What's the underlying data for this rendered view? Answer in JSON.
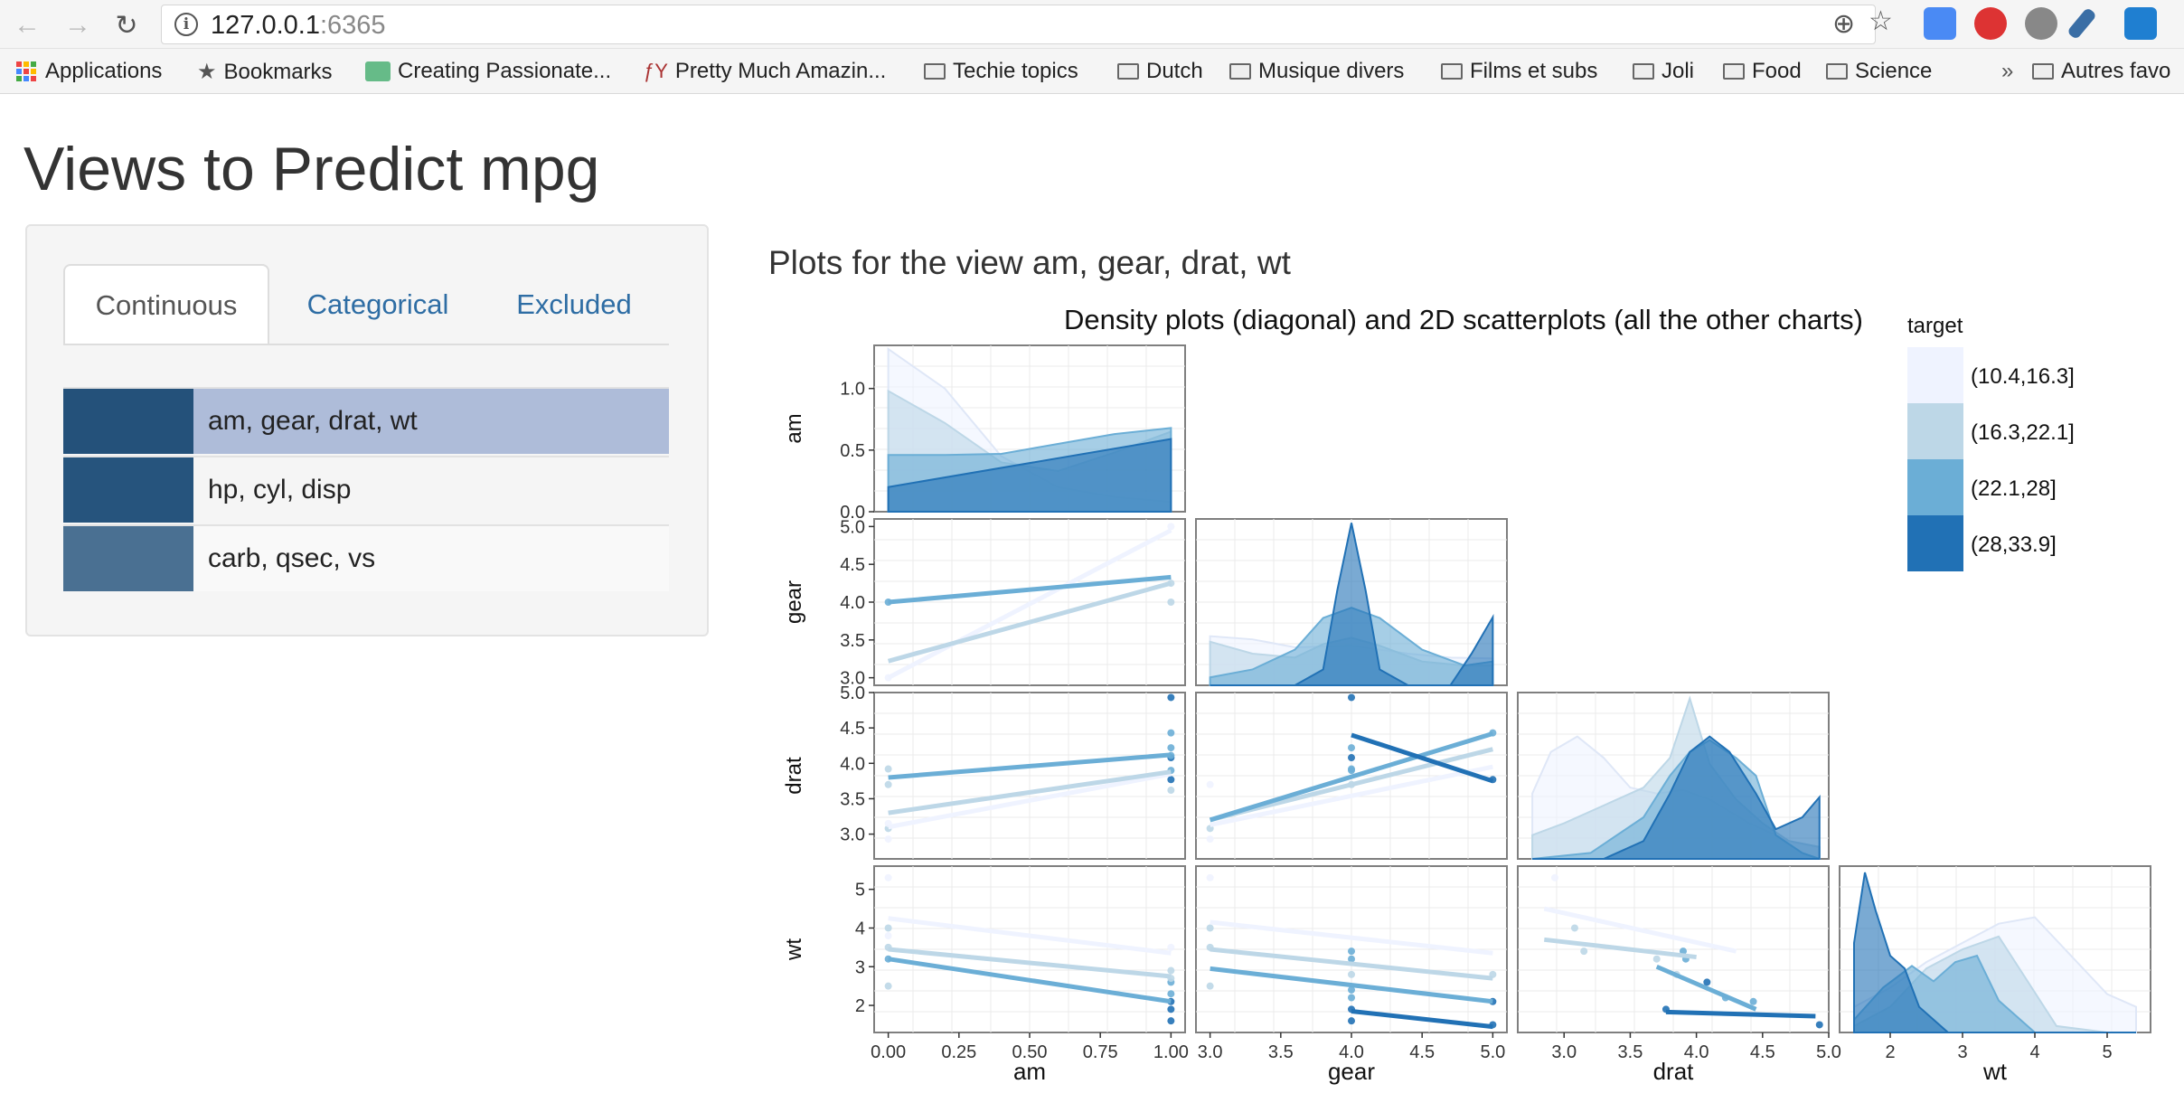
{
  "browser": {
    "url_host": "127.0.0.1",
    "url_port": ":6365",
    "bookmarks": [
      {
        "label": "Applications",
        "icon": "apps-icon"
      },
      {
        "label": "Bookmarks",
        "icon": "star-icon"
      },
      {
        "label": "Creating Passionate...",
        "icon": "site-icon"
      },
      {
        "label": "Pretty Much Amazin...",
        "icon": "site-icon"
      },
      {
        "label": "Techie topics",
        "icon": "folder-icon"
      },
      {
        "label": "Dutch",
        "icon": "folder-icon"
      },
      {
        "label": "Musique divers",
        "icon": "folder-icon"
      },
      {
        "label": "Films et subs",
        "icon": "folder-icon"
      },
      {
        "label": "Joli",
        "icon": "folder-icon"
      },
      {
        "label": "Food",
        "icon": "folder-icon"
      },
      {
        "label": "Science",
        "icon": "folder-icon"
      }
    ],
    "overflow_label": "»",
    "other_bookmarks": "Autres favo"
  },
  "page": {
    "title": "Views to Predict mpg",
    "tabs": [
      "Continuous",
      "Categorical",
      "Excluded"
    ],
    "views": [
      {
        "label": "am, gear, drat, wt",
        "swatch": "#24517a",
        "selected": true
      },
      {
        "label": "hp, cyl, disp",
        "swatch": "#26547d",
        "selected": false
      },
      {
        "label": "carb, qsec, vs",
        "swatch": "#4a7092",
        "selected": false
      }
    ],
    "selected_row_color": "#aebcd9",
    "plot_heading": "Plots for the view am, gear, drat, wt"
  },
  "chart_data": {
    "type": "scatter",
    "title": "Density plots (diagonal) and 2D scatterplots (all the other charts)",
    "variables": [
      "am",
      "gear",
      "drat",
      "wt"
    ],
    "legend": {
      "title": "target",
      "placement": "top-right",
      "entries": [
        "(10.4,16.3]",
        "(16.3,22.1]",
        "(22.1,28]",
        "(28,33.9]"
      ],
      "colors": [
        "#eff3ff",
        "#bdd7e7",
        "#6baed6",
        "#2171b5"
      ]
    },
    "axes": {
      "am": {
        "range": [
          -0.05,
          1.05
        ],
        "ticks": [
          "0.00",
          "0.25",
          "0.50",
          "0.75",
          "1.00"
        ]
      },
      "gear": {
        "range": [
          2.9,
          5.1
        ],
        "ticks": [
          "3.0",
          "3.5",
          "4.0",
          "4.5",
          "5.0"
        ]
      },
      "drat": {
        "range": [
          2.65,
          5.0
        ],
        "ticks": [
          "3.0",
          "3.5",
          "4.0",
          "4.5",
          "5.0"
        ]
      },
      "wt": {
        "range": [
          1.3,
          5.6
        ],
        "ticks": [
          "2",
          "3",
          "4",
          "5"
        ]
      }
    },
    "row_ticks": {
      "am": [
        "0.0",
        "0.5",
        "1.0"
      ],
      "gear": [
        "3.0",
        "3.5",
        "4.0",
        "4.5",
        "5.0"
      ],
      "drat": [
        "3.0",
        "3.5",
        "4.0",
        "4.5",
        "5.0"
      ],
      "wt": [
        "2",
        "3",
        "4",
        "5"
      ]
    },
    "density_ranges": {
      "am": [
        0,
        1.35
      ],
      "gear": [
        0,
        2.1
      ],
      "drat": [
        0,
        1.4
      ],
      "wt": [
        0,
        1.3
      ]
    },
    "densities": {
      "am": [
        {
          "x": [
            0,
            0.2,
            0.4,
            0.6,
            0.8,
            1.0
          ],
          "y": [
            1.32,
            1.0,
            0.45,
            0.2,
            0.12,
            0.08
          ]
        },
        {
          "x": [
            0,
            0.2,
            0.4,
            0.6,
            0.8,
            1.0
          ],
          "y": [
            0.98,
            0.72,
            0.4,
            0.33,
            0.48,
            0.65
          ]
        },
        {
          "x": [
            0,
            0.2,
            0.4,
            0.6,
            0.8,
            1.0
          ],
          "y": [
            0.46,
            0.46,
            0.47,
            0.55,
            0.63,
            0.68
          ]
        },
        {
          "x": [
            0,
            1.0
          ],
          "y": [
            0.2,
            0.59
          ]
        }
      ],
      "gear": [
        {
          "x": [
            3.0,
            3.3,
            3.6,
            4.0,
            4.4,
            4.7,
            5.0
          ],
          "y": [
            0.62,
            0.58,
            0.48,
            0.5,
            0.4,
            0.35,
            0.34
          ]
        },
        {
          "x": [
            3.0,
            3.3,
            3.6,
            3.8,
            4.0,
            4.2,
            4.5,
            4.8,
            5.0
          ],
          "y": [
            0.55,
            0.4,
            0.35,
            0.52,
            0.6,
            0.5,
            0.3,
            0.25,
            0.25
          ]
        },
        {
          "x": [
            3.0,
            3.3,
            3.6,
            3.8,
            4.0,
            4.2,
            4.5,
            4.8,
            5.0
          ],
          "y": [
            0.1,
            0.2,
            0.45,
            0.85,
            0.98,
            0.85,
            0.45,
            0.25,
            0.3
          ]
        },
        {
          "x": [
            3.0,
            3.6,
            3.8,
            3.9,
            4.0,
            4.1,
            4.2,
            4.4,
            4.7,
            4.85,
            5.0
          ],
          "y": [
            0,
            0,
            0.2,
            1.2,
            2.05,
            1.2,
            0.2,
            0,
            0,
            0.4,
            0.86
          ]
        }
      ],
      "drat": [
        {
          "x": [
            2.76,
            2.9,
            3.1,
            3.3,
            3.5,
            3.7,
            3.9,
            4.1,
            4.4,
            4.7,
            4.93
          ],
          "y": [
            0.55,
            0.9,
            1.03,
            0.85,
            0.6,
            0.55,
            0.58,
            0.5,
            0.3,
            0.15,
            0.1
          ]
        },
        {
          "x": [
            2.76,
            3.0,
            3.3,
            3.6,
            3.8,
            3.95,
            4.1,
            4.3,
            4.5,
            4.7,
            4.93
          ],
          "y": [
            0.2,
            0.3,
            0.45,
            0.6,
            0.85,
            1.35,
            0.8,
            0.5,
            0.3,
            0.15,
            0.1
          ]
        },
        {
          "x": [
            2.76,
            3.2,
            3.6,
            3.8,
            3.95,
            4.1,
            4.3,
            4.45,
            4.6,
            4.8,
            4.93
          ],
          "y": [
            0,
            0.05,
            0.35,
            0.7,
            0.9,
            1.0,
            0.85,
            0.7,
            0.2,
            0.05,
            0
          ]
        },
        {
          "x": [
            2.76,
            3.3,
            3.6,
            3.8,
            3.95,
            4.1,
            4.25,
            4.45,
            4.6,
            4.8,
            4.93
          ],
          "y": [
            0,
            0,
            0.15,
            0.55,
            0.9,
            1.03,
            0.9,
            0.55,
            0.25,
            0.35,
            0.52
          ]
        }
      ],
      "wt": [
        {
          "x": [
            1.5,
            2.0,
            2.5,
            3.0,
            3.5,
            4.0,
            4.5,
            5.0,
            5.4
          ],
          "y": [
            0.2,
            0.35,
            0.55,
            0.7,
            0.85,
            0.9,
            0.6,
            0.3,
            0.2
          ]
        },
        {
          "x": [
            1.5,
            2.0,
            2.5,
            3.0,
            3.5,
            3.9,
            4.3,
            5.0,
            5.4
          ],
          "y": [
            0.05,
            0.2,
            0.5,
            0.65,
            0.75,
            0.4,
            0.05,
            0,
            0
          ]
        },
        {
          "x": [
            1.5,
            1.9,
            2.3,
            2.6,
            2.9,
            3.2,
            3.5,
            4.0,
            5.4
          ],
          "y": [
            0.1,
            0.35,
            0.52,
            0.4,
            0.55,
            0.6,
            0.25,
            0,
            0
          ]
        },
        {
          "x": [
            1.5,
            1.65,
            1.8,
            2.0,
            2.2,
            2.4,
            2.8,
            3.5,
            5.4
          ],
          "y": [
            0.7,
            1.25,
            0.95,
            0.6,
            0.5,
            0.2,
            0,
            0,
            0
          ]
        }
      ]
    },
    "regression_lines": {
      "am-gear": [
        [
          3.0,
          4.95
        ],
        [
          3.22,
          4.25
        ],
        [
          4.0,
          4.33
        ]
      ],
      "am-drat": [
        [
          3.1,
          3.85
        ],
        [
          3.3,
          3.88
        ],
        [
          3.8,
          4.12
        ]
      ],
      "gear-drat": [
        [
          3.13,
          3.95
        ],
        [
          3.2,
          4.2
        ],
        [
          3.2,
          4.42
        ],
        [
          4.4,
          3.75
        ]
      ],
      "am-wt": [
        [
          4.25,
          3.35
        ],
        [
          3.45,
          2.75
        ],
        [
          3.2,
          2.1
        ]
      ],
      "gear-wt": [
        [
          4.15,
          3.35
        ],
        [
          3.45,
          2.7
        ],
        [
          2.95,
          2.1
        ],
        [
          1.85,
          1.45
        ]
      ],
      "drat-wt": [
        {
          "x": [
            2.85,
            4.3
          ],
          "y": [
            4.5,
            3.4
          ]
        },
        {
          "x": [
            2.85,
            4.0
          ],
          "y": [
            3.7,
            3.25
          ]
        },
        {
          "x": [
            3.7,
            4.45
          ],
          "y": [
            3.0,
            1.9
          ]
        },
        {
          "x": [
            3.77,
            4.9
          ],
          "y": [
            1.83,
            1.72
          ]
        }
      ]
    },
    "points": {
      "am-gear": [
        [
          0,
          4,
          2
        ],
        [
          0,
          3,
          0
        ],
        [
          1,
          5,
          0
        ],
        [
          1,
          4,
          1
        ],
        [
          1,
          4.25,
          1
        ]
      ],
      "am-drat": [
        [
          0,
          3.92,
          1
        ],
        [
          0,
          3.08,
          1
        ],
        [
          0,
          2.93,
          0
        ],
        [
          0,
          3.7,
          1
        ],
        [
          0,
          3.15,
          0
        ],
        [
          1,
          4.93,
          3
        ],
        [
          1,
          4.43,
          2
        ],
        [
          1,
          4.22,
          2
        ],
        [
          1,
          4.08,
          3
        ],
        [
          1,
          3.9,
          2
        ],
        [
          1,
          3.77,
          3
        ],
        [
          1,
          4.11,
          2
        ],
        [
          1,
          3.62,
          1
        ]
      ],
      "gear-drat": [
        [
          3,
          3.08,
          1
        ],
        [
          3,
          3.7,
          0
        ],
        [
          3,
          2.93,
          0
        ],
        [
          4,
          4.93,
          3
        ],
        [
          4,
          4.22,
          2
        ],
        [
          4,
          4.08,
          3
        ],
        [
          4,
          3.92,
          2
        ],
        [
          4,
          3.7,
          1
        ],
        [
          4,
          3.9,
          2
        ],
        [
          5,
          4.43,
          2
        ],
        [
          5,
          3.77,
          3
        ]
      ],
      "am-wt": [
        [
          0,
          5.3,
          0
        ],
        [
          0,
          4.0,
          1
        ],
        [
          0,
          3.8,
          0
        ],
        [
          0,
          3.5,
          1
        ],
        [
          0,
          3.2,
          2
        ],
        [
          0,
          2.5,
          1
        ],
        [
          1,
          3.5,
          0
        ],
        [
          1,
          2.9,
          1
        ],
        [
          1,
          2.6,
          2
        ],
        [
          1,
          2.3,
          2
        ],
        [
          1,
          2.1,
          3
        ],
        [
          1,
          1.9,
          3
        ],
        [
          1,
          1.6,
          3
        ],
        [
          1,
          2.7,
          1
        ]
      ],
      "gear-wt": [
        [
          3,
          5.3,
          0
        ],
        [
          3,
          4.0,
          1
        ],
        [
          3,
          3.5,
          1
        ],
        [
          3,
          2.5,
          1
        ],
        [
          4,
          3.4,
          2
        ],
        [
          4,
          3.2,
          2
        ],
        [
          4,
          2.8,
          1
        ],
        [
          4,
          2.4,
          2
        ],
        [
          4,
          2.2,
          2
        ],
        [
          4,
          1.9,
          3
        ],
        [
          4,
          1.6,
          3
        ],
        [
          5,
          2.1,
          3
        ],
        [
          5,
          1.5,
          3
        ],
        [
          5,
          2.8,
          1
        ]
      ],
      "drat-wt": [
        [
          3.08,
          4.0,
          1
        ],
        [
          3.15,
          3.4,
          1
        ],
        [
          2.93,
          5.3,
          0
        ],
        [
          3.7,
          3.2,
          1
        ],
        [
          3.9,
          3.4,
          2
        ],
        [
          3.92,
          3.2,
          2
        ],
        [
          4.08,
          2.6,
          3
        ],
        [
          4.22,
          2.2,
          2
        ],
        [
          4.43,
          2.1,
          2
        ],
        [
          3.77,
          1.9,
          3
        ],
        [
          4.93,
          1.5,
          3
        ],
        [
          3.85,
          2.8,
          1
        ]
      ]
    }
  }
}
